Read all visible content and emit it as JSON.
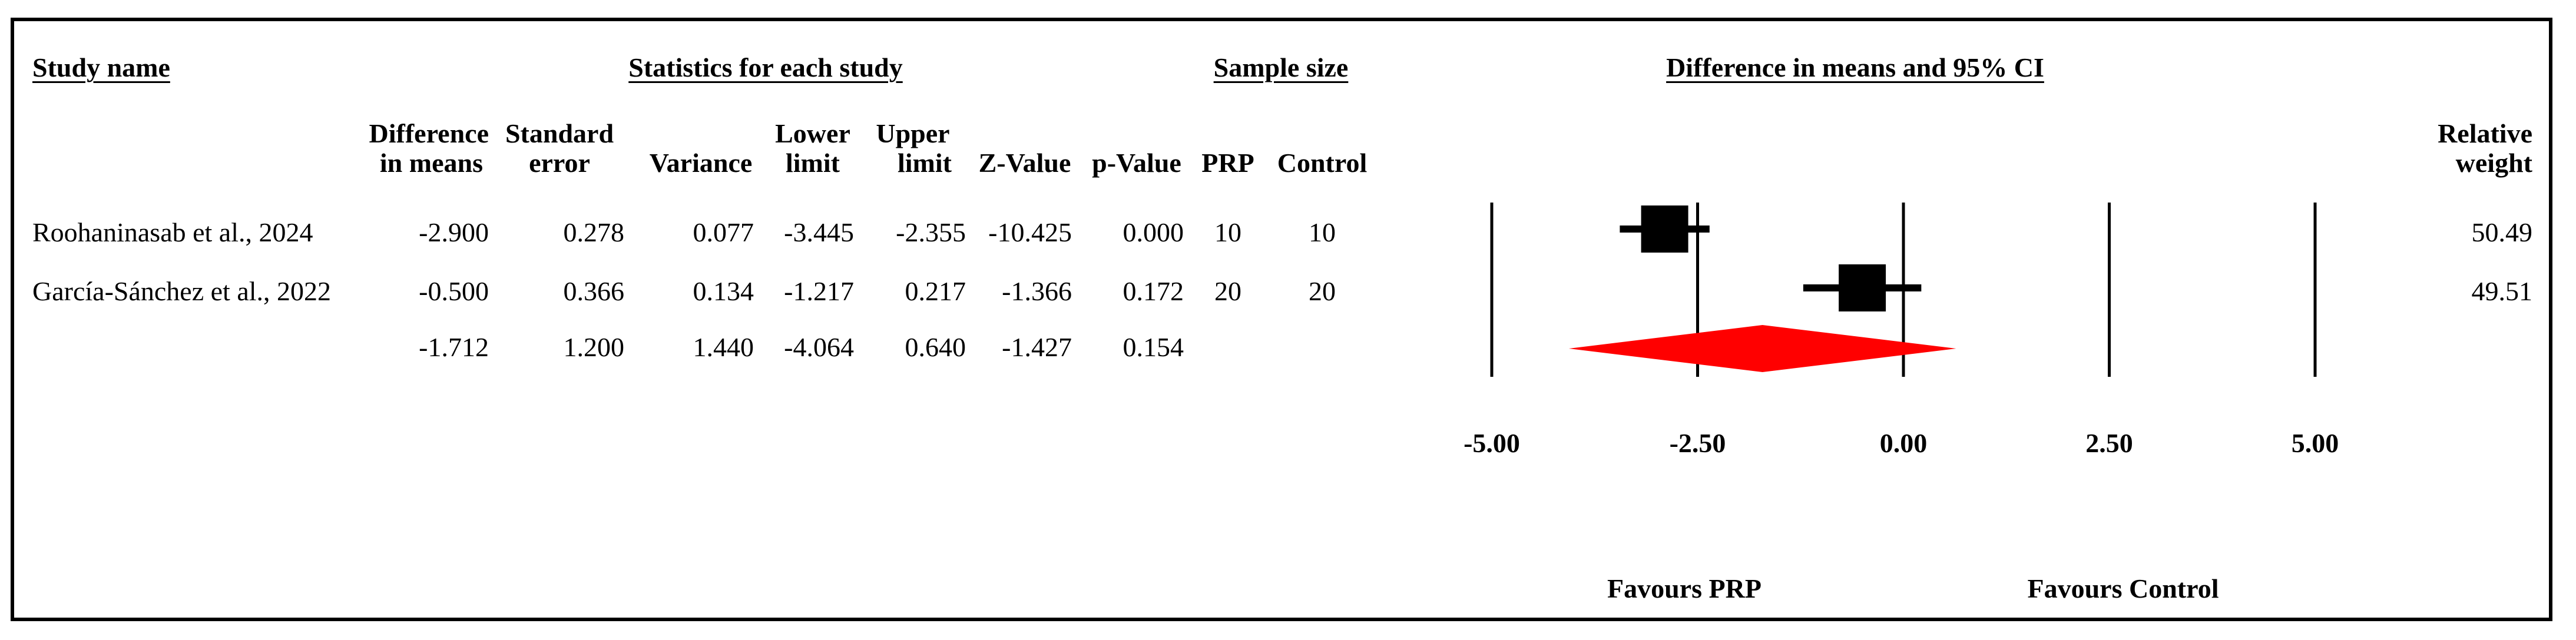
{
  "headers": {
    "study_name": "Study name",
    "statistics": "Statistics for each study",
    "sample_size": "Sample size",
    "plot_title": "Difference in means and 95% CI"
  },
  "columns": {
    "diff_l1": "Difference",
    "diff_l2": "in means",
    "se_l1": "Standard",
    "se_l2": "error",
    "variance": "Variance",
    "lower_l1": "Lower",
    "lower_l2": "limit",
    "upper_l1": "Upper",
    "upper_l2": "limit",
    "z": "Z-Value",
    "p": "p-Value",
    "prp": "PRP",
    "control": "Control",
    "weight_l1": "Relative",
    "weight_l2": "weight"
  },
  "rows": [
    {
      "study": "Roohaninasab et al., 2024",
      "diff": "-2.900",
      "se": "0.278",
      "variance": "0.077",
      "lower": "-3.445",
      "upper": "-2.355",
      "z": "-10.425",
      "p": "0.000",
      "prp": "10",
      "control": "10",
      "weight": "50.49"
    },
    {
      "study": "García-Sánchez et al., 2022",
      "diff": "-0.500",
      "se": "0.366",
      "variance": "0.134",
      "lower": "-1.217",
      "upper": "0.217",
      "z": "-1.366",
      "p": "0.172",
      "prp": "20",
      "control": "20",
      "weight": "49.51"
    },
    {
      "study": "",
      "diff": "-1.712",
      "se": "1.200",
      "variance": "1.440",
      "lower": "-4.064",
      "upper": "0.640",
      "z": "-1.427",
      "p": "0.154",
      "prp": "",
      "control": "",
      "weight": ""
    }
  ],
  "footer": {
    "favours_left": "Favours PRP",
    "favours_right": "Favours Control"
  },
  "colors": {
    "marker": "#000000",
    "diamond": "#ff0000"
  },
  "chart_data": {
    "type": "forest",
    "title": "Difference in means and 95% CI",
    "xlim": [
      -5,
      5
    ],
    "xticks": [
      -5,
      -2.5,
      0,
      2.5,
      5
    ],
    "xtick_labels": [
      "-5.00",
      "-2.50",
      "0.00",
      "2.50",
      "5.00"
    ],
    "studies": [
      {
        "name": "Roohaninasab et al., 2024",
        "estimate": -2.9,
        "lower": -3.445,
        "upper": -2.355,
        "weight": 50.49
      },
      {
        "name": "García-Sánchez et al., 2022",
        "estimate": -0.5,
        "lower": -1.217,
        "upper": 0.217,
        "weight": 49.51
      }
    ],
    "summary": {
      "estimate": -1.712,
      "lower": -4.064,
      "upper": 0.64
    }
  }
}
